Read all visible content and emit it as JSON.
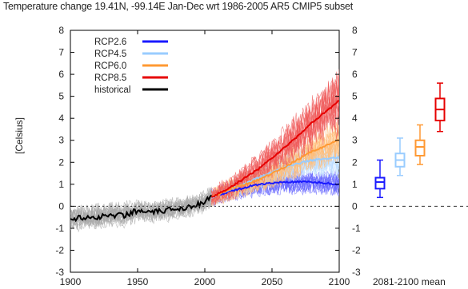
{
  "title": "Temperature change 19.41N, -99.14E Jan-Dec wrt 1986-2005 AR5 CMIP5 subset",
  "ylabel": "[Celsius]",
  "mean_label": "2081-2100 mean",
  "chart_data": {
    "type": "line",
    "title": "Temperature change 19.41N, -99.14E Jan-Dec wrt 1986-2005 AR5 CMIP5 subset",
    "xlabel": "",
    "ylabel": "[Celsius]",
    "xlim": [
      1900,
      2100
    ],
    "ylim": [
      -3,
      8
    ],
    "x_ticks": [
      1900,
      1950,
      2000,
      2050,
      2100
    ],
    "y_ticks": [
      -3,
      -2,
      -1,
      0,
      1,
      2,
      3,
      4,
      5,
      6,
      7,
      8
    ],
    "legend_position": "top-left",
    "series": [
      {
        "name": "historical",
        "color": "#000000",
        "x": [
          1900,
          1910,
          1920,
          1930,
          1940,
          1950,
          1960,
          1970,
          1980,
          1990,
          2000,
          2005
        ],
        "y": [
          -0.6,
          -0.5,
          -0.5,
          -0.4,
          -0.4,
          -0.2,
          -0.3,
          -0.2,
          -0.1,
          0.0,
          0.2,
          0.4
        ],
        "spread": [
          0.7,
          0.7,
          0.7,
          0.7,
          0.7,
          0.6,
          0.6,
          0.6,
          0.6,
          0.6,
          0.6,
          0.6
        ]
      },
      {
        "name": "RCP2.6",
        "color": "#1a1aff",
        "x": [
          2005,
          2020,
          2040,
          2060,
          2080,
          2100
        ],
        "y": [
          0.4,
          0.7,
          1.0,
          1.1,
          1.1,
          1.0
        ],
        "spread": [
          0.5,
          0.6,
          0.7,
          0.7,
          0.7,
          0.7
        ]
      },
      {
        "name": "RCP4.5",
        "color": "#99ccff",
        "x": [
          2005,
          2020,
          2040,
          2060,
          2080,
          2100
        ],
        "y": [
          0.4,
          0.8,
          1.3,
          1.8,
          2.1,
          2.2
        ],
        "spread": [
          0.5,
          0.6,
          0.7,
          0.8,
          0.9,
          1.0
        ]
      },
      {
        "name": "RCP6.0",
        "color": "#ff9933",
        "x": [
          2005,
          2020,
          2040,
          2060,
          2080,
          2100
        ],
        "y": [
          0.4,
          0.8,
          1.2,
          1.8,
          2.5,
          3.0
        ],
        "spread": [
          0.5,
          0.6,
          0.7,
          0.9,
          1.0,
          1.2
        ]
      },
      {
        "name": "RCP8.5",
        "color": "#e60000",
        "x": [
          2005,
          2020,
          2040,
          2060,
          2080,
          2100
        ],
        "y": [
          0.4,
          0.9,
          1.7,
          2.7,
          3.8,
          4.8
        ],
        "spread": [
          0.5,
          0.7,
          0.9,
          1.2,
          1.5,
          1.8
        ]
      }
    ],
    "boxplots_2081_2100_mean": [
      {
        "name": "RCP2.6",
        "color": "#1a1aff",
        "min": 0.4,
        "q1": 0.8,
        "median": 1.1,
        "q3": 1.3,
        "max": 2.1
      },
      {
        "name": "RCP4.5",
        "color": "#99ccff",
        "min": 1.4,
        "q1": 1.8,
        "median": 2.1,
        "q3": 2.4,
        "max": 3.1
      },
      {
        "name": "RCP6.0",
        "color": "#ff9933",
        "min": 1.9,
        "q1": 2.3,
        "median": 2.7,
        "q3": 3.0,
        "max": 3.7
      },
      {
        "name": "RCP8.5",
        "color": "#e60000",
        "min": 3.4,
        "q1": 3.9,
        "median": 4.4,
        "q3": 4.9,
        "max": 5.6
      }
    ],
    "zero_line": true
  }
}
